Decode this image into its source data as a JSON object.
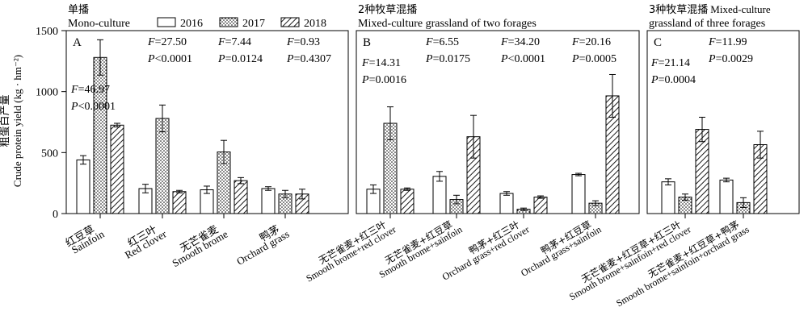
{
  "chart_data": {
    "type": "bar",
    "ylabel_cn": "粗蛋白产量",
    "ylabel_en": "Crude protein yield (kg · hm⁻²)",
    "ylim": [
      0,
      1500
    ],
    "yticks": [
      "0",
      "500",
      "1000",
      "1500"
    ],
    "legend": {
      "placement": "top",
      "entries": [
        {
          "label": "2016",
          "pattern": "white"
        },
        {
          "label": "2017",
          "pattern": "dots"
        },
        {
          "label": "2018",
          "pattern": "hatch"
        }
      ]
    },
    "panels": [
      {
        "letter": "A",
        "title_cn": "单播",
        "title_en": "Mono-culture",
        "groups": [
          {
            "label_cn": "红豆草",
            "label_en": "Sainfoin",
            "values": [
              440,
              1280,
              725
            ],
            "errors": [
              35,
              145,
              15
            ],
            "F": "F=46.97",
            "P": "P<0.0001"
          },
          {
            "label_cn": "红三叶",
            "label_en": "Red clover",
            "values": [
              205,
              780,
              180
            ],
            "errors": [
              35,
              110,
              10
            ],
            "F": "F=27.50",
            "P": "P<0.0001"
          },
          {
            "label_cn": "无芒雀麦",
            "label_en": "Smooth brome",
            "values": [
              195,
              505,
              270
            ],
            "errors": [
              30,
              95,
              25
            ],
            "F": "F=7.44",
            "P": "P=0.0124"
          },
          {
            "label_cn": "鸭茅",
            "label_en": "Orchard grass",
            "values": [
              205,
              160,
              160
            ],
            "errors": [
              15,
              30,
              40
            ],
            "F": "F=0.93",
            "P": "P=0.4307"
          }
        ]
      },
      {
        "letter": "B",
        "title_cn": "2种牧草混播",
        "title_en": "Mixed-culture grassland of two forages",
        "groups": [
          {
            "label_cn": "无芒雀麦+红三叶",
            "label_en": "Smooth brome+red clover",
            "values": [
              200,
              740,
              200
            ],
            "errors": [
              35,
              135,
              10
            ],
            "F": "F=14.31",
            "P": "P=0.0016"
          },
          {
            "label_cn": "无芒雀麦+红豆草",
            "label_en": "Smooth brome+sainfoin",
            "values": [
              305,
              115,
              630
            ],
            "errors": [
              40,
              35,
              175
            ],
            "F": "F=6.55",
            "P": "P=0.0175"
          },
          {
            "label_cn": "鸭茅+红三叶",
            "label_en": "Orchard grass+red clover",
            "values": [
              165,
              35,
              135
            ],
            "errors": [
              15,
              10,
              10
            ],
            "F": "F=34.20",
            "P": "P<0.0001"
          },
          {
            "label_cn": "鸭茅+红豆草",
            "label_en": "Orchard grass+sainfoin",
            "values": [
              320,
              85,
              965
            ],
            "errors": [
              10,
              20,
              175
            ],
            "F": "F=20.16",
            "P": "P=0.0005"
          }
        ]
      },
      {
        "letter": "C",
        "title_cn": "3种牧草混播",
        "title_en": "Mixed-culture grassland of three forages",
        "groups": [
          {
            "label_cn": "无芒雀麦+红豆草+红三叶",
            "label_en": "Smooth brome+sainfoin+red clover",
            "values": [
              260,
              135,
              690
            ],
            "errors": [
              25,
              25,
              100
            ],
            "F": "F=21.14",
            "P": "P=0.0004"
          },
          {
            "label_cn": "无芒雀麦+红豆草+鸭茅",
            "label_en": "Smooth brome+sainfoin+orchard grass",
            "values": [
              275,
              90,
              565
            ],
            "errors": [
              15,
              40,
              110
            ],
            "F": "F=11.99",
            "P": "P=0.0029"
          }
        ]
      }
    ]
  }
}
